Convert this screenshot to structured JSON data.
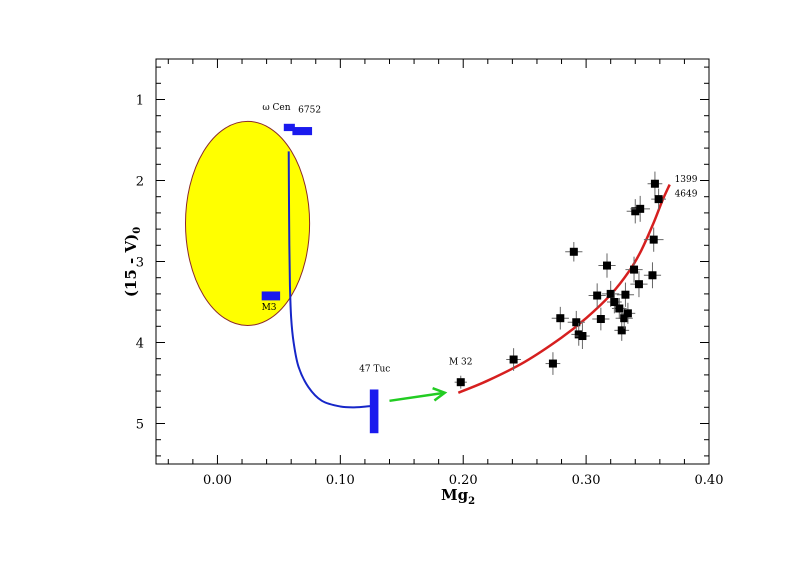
{
  "chart_data": {
    "type": "scatter",
    "xlabel": "Mg",
    "xlabel_sub": "2",
    "ylabel": "(15 - V)",
    "ylabel_sub": "0",
    "xlim": [
      -0.05,
      0.4
    ],
    "ylim": [
      5.5,
      0.5
    ],
    "y_inverted": true,
    "grid": false,
    "x_ticks": [
      {
        "value": 0.0,
        "label": "0.00"
      },
      {
        "value": 0.1,
        "label": "0.10"
      },
      {
        "value": 0.2,
        "label": "0.20"
      },
      {
        "value": 0.3,
        "label": "0.30"
      },
      {
        "value": 0.4,
        "label": "0.40"
      }
    ],
    "y_ticks": [
      {
        "value": 1,
        "label": "1"
      },
      {
        "value": 2,
        "label": "2"
      },
      {
        "value": 3,
        "label": "3"
      },
      {
        "value": 4,
        "label": "4"
      },
      {
        "value": 5,
        "label": "5"
      }
    ],
    "points": [
      {
        "x": 0.198,
        "y": 4.49,
        "xerr": 0.005,
        "yerr": 0.08
      },
      {
        "x": 0.241,
        "y": 4.21,
        "xerr": 0.006,
        "yerr": 0.14
      },
      {
        "x": 0.273,
        "y": 4.26,
        "xerr": 0.006,
        "yerr": 0.14
      },
      {
        "x": 0.279,
        "y": 3.7,
        "xerr": 0.007,
        "yerr": 0.14
      },
      {
        "x": 0.29,
        "y": 2.88,
        "xerr": 0.007,
        "yerr": 0.12
      },
      {
        "x": 0.292,
        "y": 3.75,
        "xerr": 0.007,
        "yerr": 0.14
      },
      {
        "x": 0.294,
        "y": 3.9,
        "xerr": 0.006,
        "yerr": 0.14
      },
      {
        "x": 0.297,
        "y": 3.92,
        "xerr": 0.006,
        "yerr": 0.16
      },
      {
        "x": 0.309,
        "y": 3.42,
        "xerr": 0.007,
        "yerr": 0.15
      },
      {
        "x": 0.312,
        "y": 3.71,
        "xerr": 0.007,
        "yerr": 0.14
      },
      {
        "x": 0.317,
        "y": 3.05,
        "xerr": 0.007,
        "yerr": 0.15
      },
      {
        "x": 0.32,
        "y": 3.4,
        "xerr": 0.007,
        "yerr": 0.16
      },
      {
        "x": 0.323,
        "y": 3.5,
        "xerr": 0.006,
        "yerr": 0.14
      },
      {
        "x": 0.327,
        "y": 3.58,
        "xerr": 0.006,
        "yerr": 0.13
      },
      {
        "x": 0.329,
        "y": 3.85,
        "xerr": 0.006,
        "yerr": 0.13
      },
      {
        "x": 0.331,
        "y": 3.7,
        "xerr": 0.007,
        "yerr": 0.13
      },
      {
        "x": 0.332,
        "y": 3.41,
        "xerr": 0.007,
        "yerr": 0.15
      },
      {
        "x": 0.334,
        "y": 3.64,
        "xerr": 0.006,
        "yerr": 0.13
      },
      {
        "x": 0.339,
        "y": 3.1,
        "xerr": 0.007,
        "yerr": 0.16
      },
      {
        "x": 0.34,
        "y": 2.38,
        "xerr": 0.007,
        "yerr": 0.15
      },
      {
        "x": 0.343,
        "y": 3.28,
        "xerr": 0.007,
        "yerr": 0.16
      },
      {
        "x": 0.344,
        "y": 2.35,
        "xerr": 0.008,
        "yerr": 0.16
      },
      {
        "x": 0.354,
        "y": 3.17,
        "xerr": 0.007,
        "yerr": 0.16
      },
      {
        "x": 0.355,
        "y": 2.73,
        "xerr": 0.008,
        "yerr": 0.15
      },
      {
        "x": 0.356,
        "y": 2.04,
        "xerr": 0.006,
        "yerr": 0.15
      },
      {
        "x": 0.359,
        "y": 2.23,
        "xerr": 0.006,
        "yerr": 0.13
      }
    ],
    "fit_curve": {
      "color": "#d61f1f",
      "points": [
        [
          0.196,
          4.62
        ],
        [
          0.22,
          4.47
        ],
        [
          0.25,
          4.24
        ],
        [
          0.28,
          3.94
        ],
        [
          0.3,
          3.7
        ],
        [
          0.32,
          3.41
        ],
        [
          0.335,
          3.12
        ],
        [
          0.345,
          2.86
        ],
        [
          0.355,
          2.52
        ],
        [
          0.362,
          2.25
        ],
        [
          0.368,
          2.05
        ]
      ]
    },
    "blue_track": {
      "color": "#1626c8",
      "points": [
        [
          0.058,
          1.64
        ],
        [
          0.0582,
          2.2
        ],
        [
          0.0585,
          2.8
        ],
        [
          0.059,
          3.3
        ],
        [
          0.06,
          3.7
        ],
        [
          0.062,
          4.0
        ],
        [
          0.066,
          4.3
        ],
        [
          0.074,
          4.55
        ],
        [
          0.085,
          4.72
        ],
        [
          0.1,
          4.79
        ],
        [
          0.113,
          4.8
        ],
        [
          0.121,
          4.79
        ],
        [
          0.127,
          4.78
        ]
      ]
    },
    "ellipse": {
      "cx": 0.0245,
      "cy": 2.53,
      "rx": 0.0505,
      "ry": 1.26,
      "fill": "#ffff00",
      "stroke": "#8b2a2a"
    },
    "blue_boxes": [
      {
        "x0": 0.054,
        "x1": 0.063,
        "y0": 1.3,
        "y1": 1.39
      },
      {
        "x0": 0.061,
        "x1": 0.077,
        "y0": 1.34,
        "y1": 1.44
      },
      {
        "x0": 0.036,
        "x1": 0.051,
        "y0": 3.37,
        "y1": 3.48
      },
      {
        "x0": 0.124,
        "x1": 0.131,
        "y0": 4.58,
        "y1": 5.12
      }
    ],
    "arrow": {
      "color": "#22cc22",
      "from": [
        0.14,
        4.72
      ],
      "to": [
        0.185,
        4.62
      ]
    },
    "annotations": [
      {
        "text": "ω Cen",
        "x": 0.048,
        "y": 1.13
      },
      {
        "text": "6752",
        "x": 0.075,
        "y": 1.16
      },
      {
        "text": "M3",
        "x": 0.042,
        "y": 3.6
      },
      {
        "text": "47 Tuc",
        "x": 0.128,
        "y": 4.36
      },
      {
        "text": "M 32",
        "x": 0.198,
        "y": 4.27
      },
      {
        "text": "1399",
        "x": 0.372,
        "y": 2.02
      },
      {
        "text": "4649",
        "x": 0.372,
        "y": 2.2
      }
    ],
    "colors": {
      "marker": "#000000",
      "errorbar": "#666666",
      "frame": "#000000"
    }
  }
}
